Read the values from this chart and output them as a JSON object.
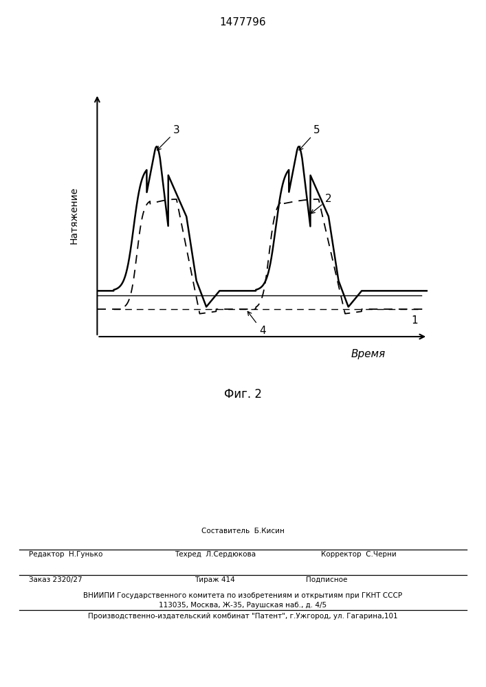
{
  "title": "1477796",
  "fig_label": "Фиг. 2",
  "ylabel": "Натяжение",
  "xlabel": "Время",
  "label_1": "1",
  "label_2": "2",
  "label_3": "3",
  "label_4": "4",
  "label_5": "5",
  "bg_color": "#ffffff",
  "line_color": "#000000",
  "footer_line1_left": "Редактор  Н.Гунько",
  "footer_line1_center": "Составитель  Б.Кисин",
  "footer_line2_center": "Техред  Л.Сердюкова",
  "footer_line2_right": "Корректор  С.Черни",
  "footer_order": "Заказ 2320/27",
  "footer_tirazh": "Тираж 414",
  "footer_podpisnoe": "Подписное",
  "footer_vniip": "ВНИИПИ Государственного комитета по изобретениям и открытиям при ГКНТ СССР",
  "footer_address": "113035, Москва, Ж-35, Раушская наб., д. 4/5",
  "footer_patent": "Производственно-издательский комбинат \"Патент\", г.Ужгород, ул. Гагарина,101"
}
